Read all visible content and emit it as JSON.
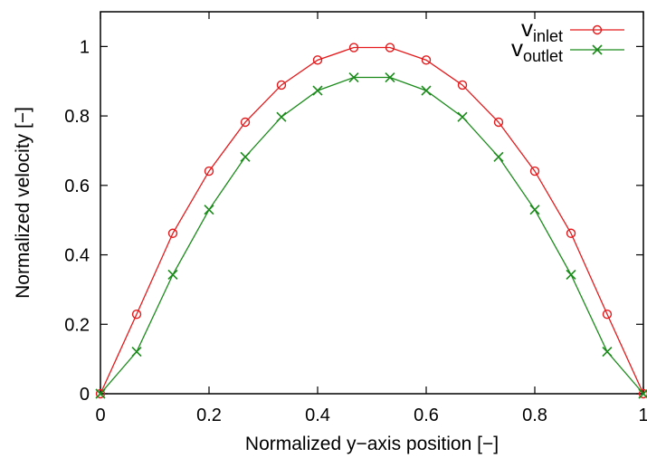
{
  "chart_data": {
    "type": "line",
    "xlabel": "Normalized y−axis position [−]",
    "ylabel": "Normalized velocity [−]",
    "xlim": [
      0,
      1
    ],
    "ylim": [
      0,
      1.1
    ],
    "grid": false,
    "legend_position": "top-right",
    "x_ticks": [
      0,
      0.2,
      0.4,
      0.6,
      0.8,
      1
    ],
    "x_tick_labels": [
      "0",
      "0.2",
      "0.4",
      "0.6",
      "0.8",
      "1"
    ],
    "y_ticks": [
      0,
      0.2,
      0.4,
      0.6,
      0.8,
      1
    ],
    "y_tick_labels": [
      "0",
      "0.2",
      "0.4",
      "0.6",
      "0.8",
      "1"
    ],
    "x": [
      0,
      0.0667,
      0.1333,
      0.2,
      0.2667,
      0.3333,
      0.4,
      0.4667,
      0.5333,
      0.6,
      0.6667,
      0.7333,
      0.8,
      0.8667,
      0.9333,
      1
    ],
    "series": [
      {
        "name": "v",
        "name_subscript": "inlet",
        "color": "#e41a1c",
        "marker": "circle",
        "values": [
          0,
          0.229,
          0.462,
          0.641,
          0.782,
          0.889,
          0.961,
          0.997,
          0.997,
          0.961,
          0.889,
          0.782,
          0.641,
          0.462,
          0.229,
          0
        ]
      },
      {
        "name": "v",
        "name_subscript": "outlet",
        "color": "#1a8a1a",
        "marker": "x",
        "values": [
          0,
          0.121,
          0.343,
          0.53,
          0.682,
          0.797,
          0.873,
          0.911,
          0.911,
          0.873,
          0.797,
          0.682,
          0.53,
          0.343,
          0.121,
          0
        ]
      }
    ]
  }
}
